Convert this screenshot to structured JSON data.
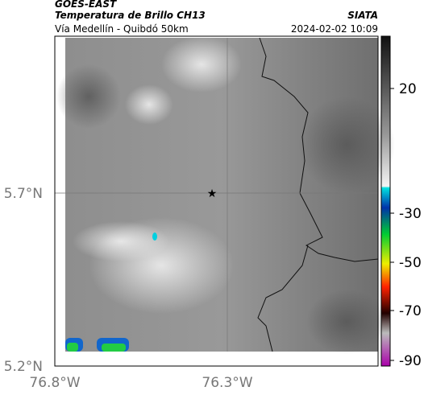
{
  "header": {
    "source": "GOES-EAST",
    "product": "Temperatura de Brillo CH13",
    "location": "Vía Medellín - Quibdó 50km",
    "org": "SIATA",
    "datetime": "2024-02-02 10:09"
  },
  "map": {
    "lat_ticks": [
      "5.7°N",
      "5.2°N"
    ],
    "lon_ticks": [
      "76.8°W",
      "76.3°W"
    ]
  },
  "colorbar": {
    "ticks": [
      20,
      -30,
      -50,
      -70,
      -90
    ]
  }
}
